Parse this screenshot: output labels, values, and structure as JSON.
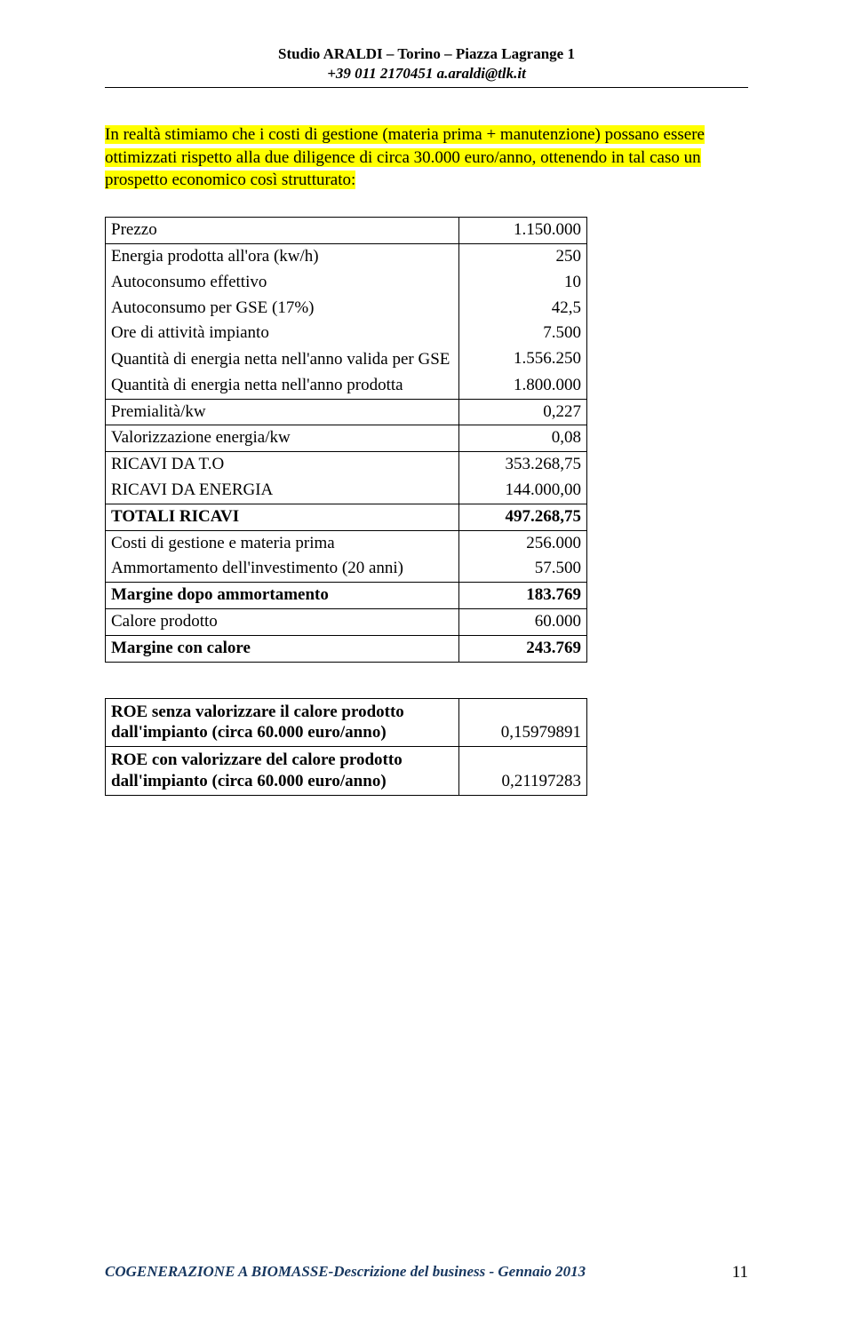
{
  "header": {
    "line1": "Studio ARALDI – Torino – Piazza Lagrange 1",
    "line2": "+39 011 2170451  a.araldi@tlk.it"
  },
  "intro": "In realtà stimiamo che i costi di gestione (materia prima + manutenzione) possano essere ottimizzati rispetto alla due diligence di circa 30.000 euro/anno, ottenendo in tal caso un prospetto economico così strutturato:",
  "table": {
    "rows": [
      {
        "label": "Prezzo",
        "value": "1.150.000",
        "bold": false,
        "group": "single"
      },
      {
        "label": "Energia prodotta all'ora (kw/h)",
        "value": "250",
        "bold": false,
        "group": "top"
      },
      {
        "label": "Autoconsumo effettivo",
        "value": "10",
        "bold": false,
        "group": "mid"
      },
      {
        "label": "Autoconsumo per GSE (17%)",
        "value": "42,5",
        "bold": false,
        "group": "mid"
      },
      {
        "label": "Ore di attività impianto",
        "value": "7.500",
        "bold": false,
        "group": "mid"
      },
      {
        "label": "Quantità di energia netta nell'anno valida per GSE",
        "value": "1.556.250",
        "bold": false,
        "group": "mid",
        "multiline": true
      },
      {
        "label": "Quantità di energia netta nell'anno prodotta",
        "value": "1.800.000",
        "bold": false,
        "group": "bot"
      },
      {
        "label": "Premialità/kw",
        "value": "0,227",
        "bold": false,
        "group": "single"
      },
      {
        "label": "Valorizzazione energia/kw",
        "value": "0,08",
        "bold": false,
        "group": "single"
      },
      {
        "label": "RICAVI DA T.O",
        "value": "353.268,75",
        "bold": false,
        "group": "top"
      },
      {
        "label": "RICAVI DA ENERGIA",
        "value": "144.000,00",
        "bold": false,
        "group": "bot"
      },
      {
        "label": "TOTALI RICAVI",
        "value": "497.268,75",
        "bold": true,
        "group": "single"
      },
      {
        "label": "Costi di gestione e materia prima",
        "value": "256.000",
        "bold": false,
        "group": "top"
      },
      {
        "label": "Ammortamento dell'investimento (20 anni)",
        "value": "57.500",
        "bold": false,
        "group": "bot"
      },
      {
        "label": "Margine dopo ammortamento",
        "value": "183.769",
        "bold": true,
        "group": "single"
      },
      {
        "label": "Calore prodotto",
        "value": "60.000",
        "bold": false,
        "group": "single"
      },
      {
        "label": "Margine con calore",
        "value": "243.769",
        "bold": true,
        "group": "single"
      }
    ]
  },
  "roe": {
    "rows": [
      {
        "label": "ROE senza valorizzare il calore prodotto dall'impianto (circa 60.000 euro/anno)",
        "value": "0,15979891"
      },
      {
        "label": "ROE con  valorizzare del calore prodotto dall'impianto (circa 60.000 euro/anno)",
        "value": "0,21197283"
      }
    ]
  },
  "footer": {
    "text": "COGENERAZIONE A BIOMASSE-Descrizione del business - Gennaio 2013",
    "page": "11"
  },
  "colors": {
    "highlight": "#ffff00",
    "footer_text": "#16365f",
    "border": "#000000",
    "background": "#ffffff"
  }
}
